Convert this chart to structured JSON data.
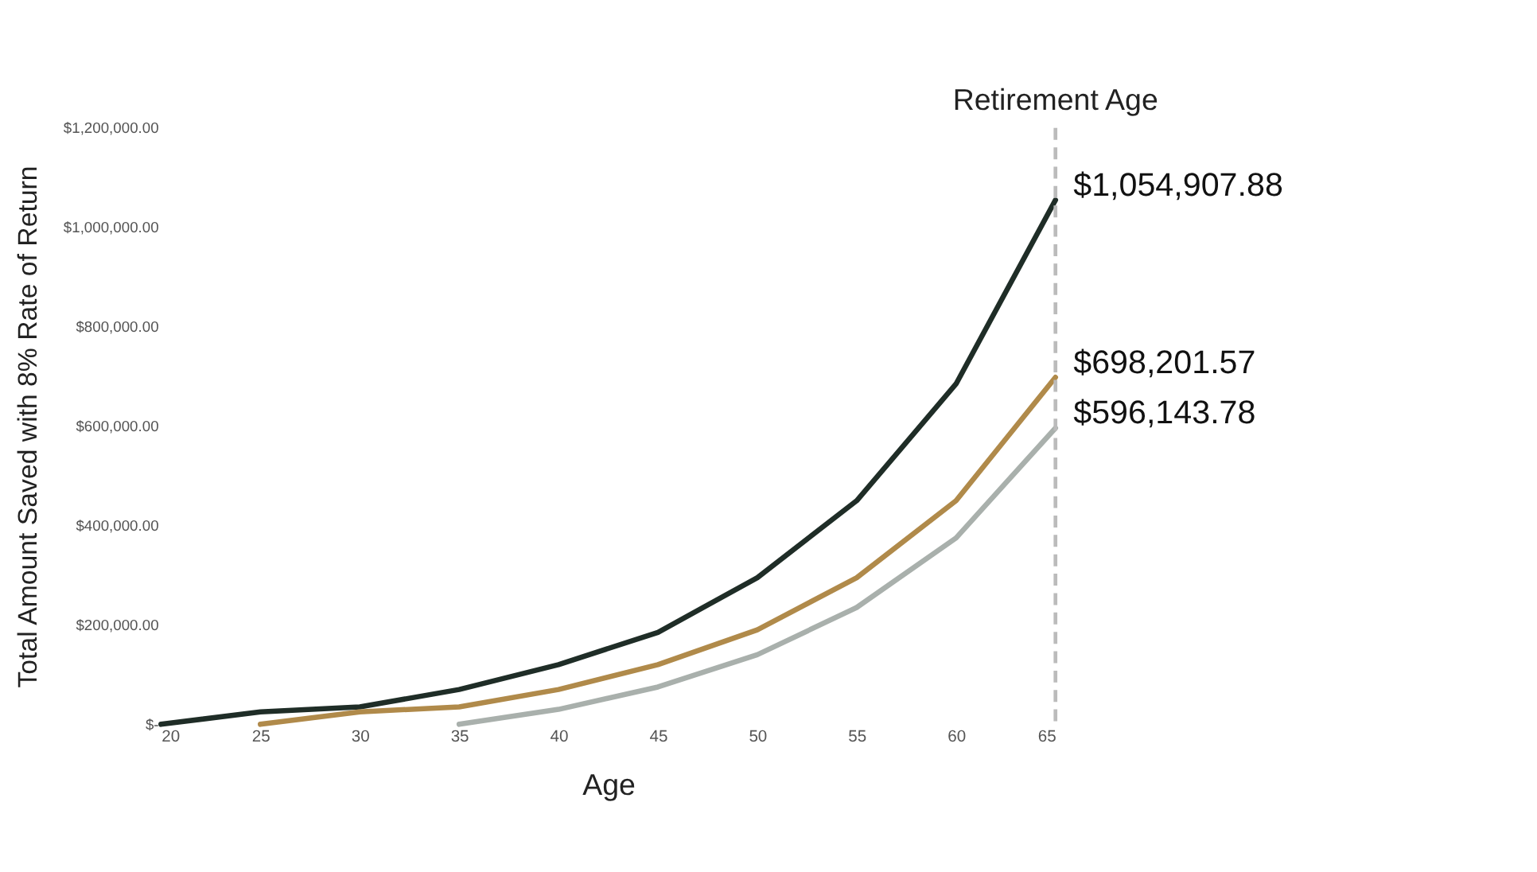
{
  "chart_data": {
    "type": "line",
    "xlabel": "Age",
    "ylabel": "Total Amount Saved with 8% Rate of Return",
    "series": [
      {
        "color": "#1f2d27",
        "x": [
          20,
          25,
          30,
          35,
          40,
          45,
          50,
          55,
          60,
          65
        ],
        "values": [
          0,
          25000,
          35000,
          70000,
          120000,
          185000,
          295000,
          450000,
          685000,
          1054907.88
        ],
        "value_labels": [
          null,
          null,
          null,
          null,
          null,
          null,
          null,
          null,
          null,
          "$1,054,907.88"
        ]
      },
      {
        "color": "#b08a4a",
        "x": [
          25,
          30,
          35,
          40,
          45,
          50,
          55,
          60,
          65
        ],
        "values": [
          0,
          25000,
          35000,
          70000,
          120000,
          190000,
          295000,
          450000,
          698201.57
        ],
        "value_labels": [
          null,
          null,
          null,
          null,
          null,
          null,
          null,
          null,
          "$698,201.57"
        ]
      },
      {
        "color": "#a9b0ac",
        "x": [
          35,
          40,
          45,
          50,
          55,
          60,
          65
        ],
        "values": [
          0,
          30000,
          75000,
          140000,
          235000,
          375000,
          596143.78
        ],
        "value_labels": [
          null,
          null,
          null,
          null,
          null,
          null,
          "$596,143.78"
        ]
      }
    ],
    "xlim": [
      20,
      65
    ],
    "xticks": [
      20,
      25,
      30,
      35,
      40,
      45,
      50,
      55,
      60,
      65
    ],
    "ylim": [
      0,
      1200000
    ],
    "yticks": [
      {
        "value": 0,
        "label": "$-"
      },
      {
        "value": 200000,
        "label": "$200,000.00"
      },
      {
        "value": 400000,
        "label": "$400,000.00"
      },
      {
        "value": 600000,
        "label": "$600,000.00"
      },
      {
        "value": 800000,
        "label": "$800,000.00"
      },
      {
        "value": 1000000,
        "label": "$1,000,000.00"
      },
      {
        "value": 1200000,
        "label": "$1,200,000.00"
      }
    ],
    "ref_lines": [
      {
        "axis": "x",
        "value": 65,
        "label": "Retirement Age",
        "color": "#bbbbbb",
        "line_style": "dashed"
      }
    ],
    "grid": false,
    "legend": false,
    "marker": "none",
    "line_style": "solid"
  }
}
